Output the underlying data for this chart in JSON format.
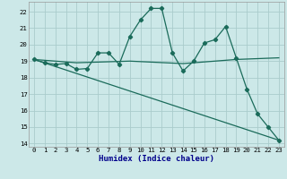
{
  "xlabel": "Humidex (Indice chaleur)",
  "bg_color": "#cce8e8",
  "grid_color": "#aacccc",
  "line_color": "#1a6b5a",
  "xlim": [
    -0.5,
    23.5
  ],
  "ylim": [
    13.8,
    22.6
  ],
  "xticks": [
    0,
    1,
    2,
    3,
    4,
    5,
    6,
    7,
    8,
    9,
    10,
    11,
    12,
    13,
    14,
    15,
    16,
    17,
    18,
    19,
    20,
    21,
    22,
    23
  ],
  "yticks": [
    14,
    15,
    16,
    17,
    18,
    19,
    20,
    21,
    22
  ],
  "line1_x": [
    0,
    1,
    2,
    3,
    4,
    5,
    6,
    7,
    8,
    9,
    10,
    11,
    12,
    13,
    14,
    15,
    16,
    17,
    18,
    19,
    20,
    21,
    22,
    23
  ],
  "line1_y": [
    19.1,
    18.9,
    18.8,
    18.85,
    18.5,
    18.55,
    19.5,
    19.5,
    18.8,
    20.5,
    21.5,
    22.2,
    22.2,
    19.5,
    18.4,
    19.0,
    20.1,
    20.3,
    21.1,
    19.2,
    17.3,
    15.8,
    15.0,
    14.2
  ],
  "line2_x": [
    0,
    4,
    9,
    14,
    19,
    23
  ],
  "line2_y": [
    19.1,
    18.9,
    19.0,
    18.85,
    19.1,
    19.2
  ],
  "line3_x": [
    0,
    23
  ],
  "line3_y": [
    19.1,
    14.2
  ],
  "xlabel_color": "#00008b",
  "xlabel_fontsize": 6.5,
  "tick_fontsize": 5.2,
  "linewidth": 0.9,
  "markersize": 2.2
}
